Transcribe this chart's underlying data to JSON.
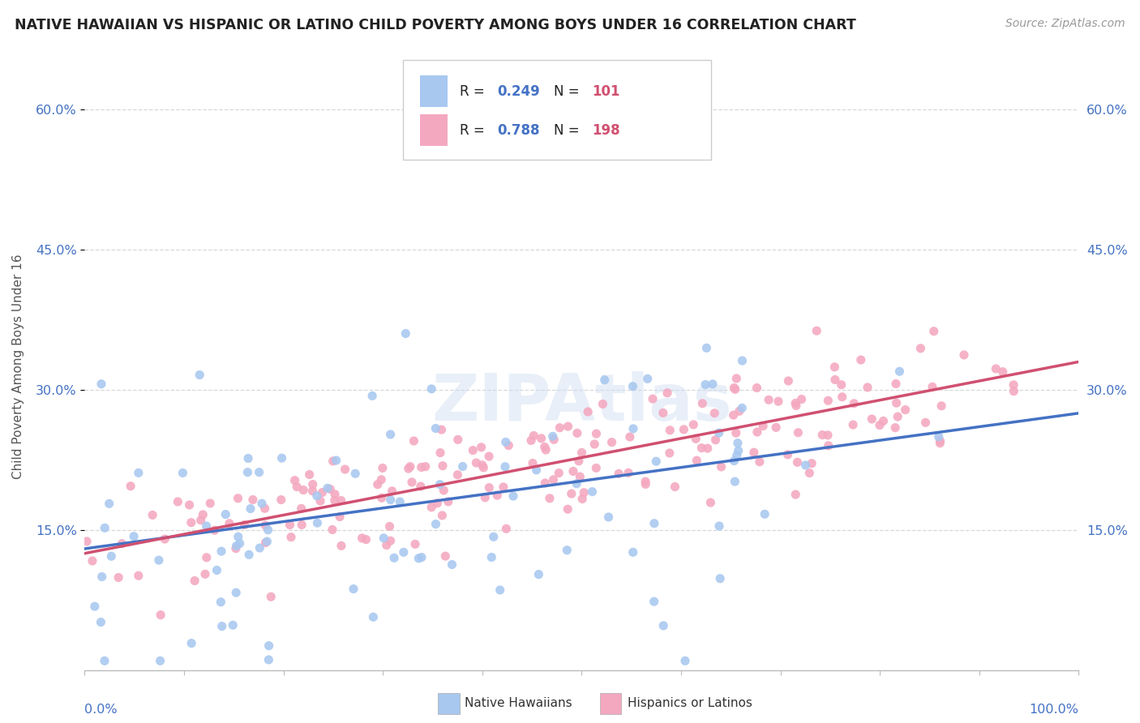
{
  "title": "NATIVE HAWAIIAN VS HISPANIC OR LATINO CHILD POVERTY AMONG BOYS UNDER 16 CORRELATION CHART",
  "source": "Source: ZipAtlas.com",
  "ylabel": "Child Poverty Among Boys Under 16",
  "watermark": "ZIPAtlas",
  "blue_R": 0.249,
  "blue_N": 101,
  "pink_R": 0.788,
  "pink_N": 198,
  "blue_color": "#a8c8f0",
  "pink_color": "#f4a8c0",
  "blue_line_color": "#4472c4",
  "pink_line_color": "#d05070",
  "title_color": "#222222",
  "source_color": "#999999",
  "background_color": "#ffffff",
  "grid_color": "#d8d8d8",
  "ytick_labels": [
    "15.0%",
    "30.0%",
    "45.0%",
    "60.0%"
  ],
  "ytick_values": [
    0.15,
    0.3,
    0.45,
    0.6
  ],
  "xlim": [
    0.0,
    1.0
  ],
  "ylim": [
    0.0,
    0.65
  ],
  "blue_intercept": 0.13,
  "blue_slope": 0.145,
  "pink_intercept": 0.125,
  "pink_slope": 0.205,
  "blue_label": "Native Hawaiians",
  "pink_label": "Hispanics or Latinos"
}
